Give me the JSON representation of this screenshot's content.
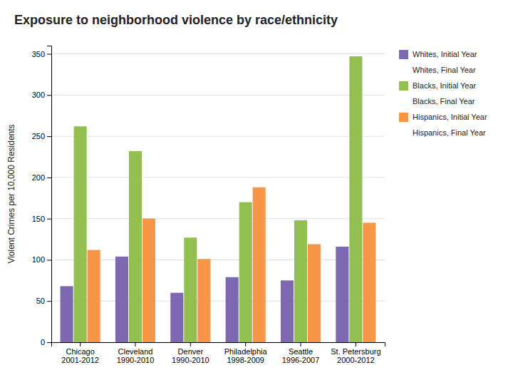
{
  "chart_data": {
    "type": "bar",
    "title": "Exposure to neighborhood violence by race/ethnicity",
    "y_label": "Violent Crimes per 10,000 Residents",
    "categories": [
      "Chicago\n2001-2012",
      "Cleveland\n1990-2010",
      "Denver\n1990-2010",
      "Philadelphia\n1998-2009",
      "Seattle\n1996-2007",
      "St. Petersburg\n2000-2012"
    ],
    "series": [
      {
        "name": "Whites, Initial Year",
        "color": "#7B68B0",
        "values": [
          68,
          104,
          60,
          79,
          75,
          116
        ]
      },
      {
        "name": "Whites, Final Year",
        "values": [
          null,
          null,
          null,
          null,
          null,
          null
        ]
      },
      {
        "name": "Blacks, Initial Year",
        "color": "#92C050",
        "values": [
          262,
          232,
          127,
          170,
          148,
          347
        ]
      },
      {
        "name": "Blacks, Final Year",
        "values": [
          null,
          null,
          null,
          null,
          null,
          null
        ]
      },
      {
        "name": "Hispanics, Initial Year",
        "color": "#F79646",
        "values": [
          112,
          150,
          101,
          188,
          119,
          145
        ]
      },
      {
        "name": "Hispanics, Final Year",
        "values": [
          null,
          null,
          null,
          null,
          null,
          null
        ]
      }
    ],
    "ylim": [
      0,
      360
    ],
    "yticks": [
      0,
      50,
      100,
      150,
      200,
      250,
      300,
      350
    ],
    "grid": true,
    "legend": "right"
  }
}
